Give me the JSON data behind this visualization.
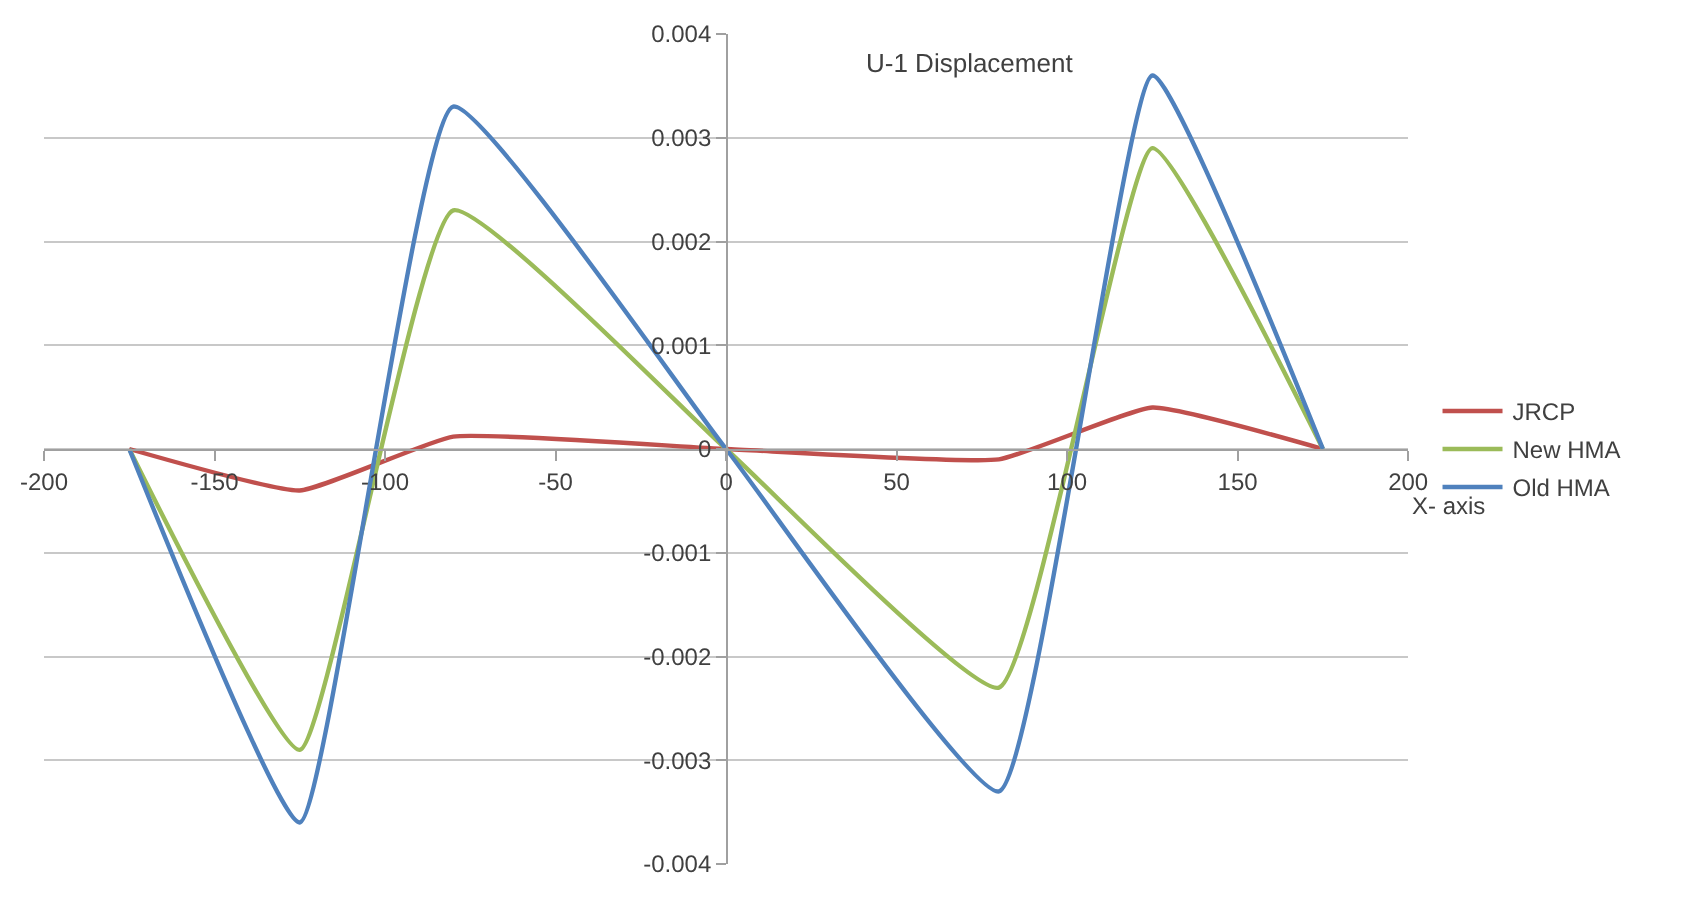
{
  "chart_data": {
    "type": "line",
    "title": "U-1 Displacement",
    "xlabel": "X- axis",
    "x": [
      -175,
      -125,
      -80,
      0,
      80,
      125,
      175
    ],
    "series": [
      {
        "name": "JRCP",
        "color": "#c0504d",
        "values": [
          0,
          -0.0004,
          0.00012,
          0,
          -0.0001,
          0.0004,
          0
        ]
      },
      {
        "name": "New HMA",
        "color": "#9bbb59",
        "values": [
          0,
          -0.0029,
          0.0023,
          0,
          -0.0023,
          0.0029,
          0
        ]
      },
      {
        "name": "Old HMA",
        "color": "#4f81bd",
        "values": [
          0,
          -0.0036,
          0.0033,
          0,
          -0.0033,
          0.0036,
          0
        ]
      }
    ],
    "xlim": [
      -200,
      200
    ],
    "xticks": [
      -200,
      -150,
      -100,
      -50,
      0,
      50,
      100,
      150,
      200
    ],
    "ylim": [
      -0.004,
      0.004
    ],
    "yticks": [
      -0.004,
      -0.003,
      -0.002,
      -0.001,
      0,
      0.001,
      0.002,
      0.003,
      0.004
    ],
    "grid": "y",
    "legend": "right",
    "marker": "none",
    "line_style": "solid"
  }
}
